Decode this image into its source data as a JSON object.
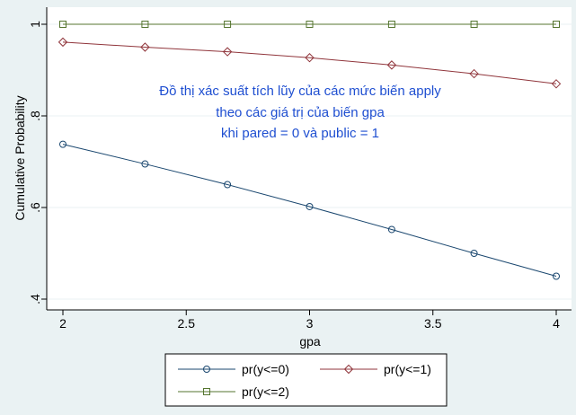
{
  "chart_data": {
    "type": "line",
    "title": "",
    "xlabel": "gpa",
    "ylabel": "Cumulative Probability",
    "xlim": [
      2,
      4
    ],
    "ylim": [
      0.4,
      1
    ],
    "x_ticks": [
      2,
      2.5,
      3,
      3.5,
      4
    ],
    "x_tick_labels": [
      "2",
      "2.5",
      "3",
      "3.5",
      "4"
    ],
    "y_ticks": [
      0.4,
      0.6,
      0.8,
      1
    ],
    "y_tick_labels": [
      ".4",
      ".6",
      ".8",
      "1"
    ],
    "grid": "horizontal",
    "legend_position": "bottom",
    "annotation": [
      "Đồ thị xác suất tích lũy của các mức biến apply",
      "theo các giá trị của biến gpa",
      "khi pared = 0 và public = 1"
    ],
    "x": [
      2,
      2.333,
      2.667,
      3,
      3.333,
      3.667,
      4
    ],
    "series": [
      {
        "name": "pr(y<=0)",
        "marker": "circle",
        "color": "#1a476f",
        "values": [
          0.738,
          0.695,
          0.65,
          0.602,
          0.552,
          0.5,
          0.45
        ]
      },
      {
        "name": "pr(y<=1)",
        "marker": "diamond",
        "color": "#90353b",
        "values": [
          0.961,
          0.95,
          0.94,
          0.927,
          0.911,
          0.892,
          0.87
        ]
      },
      {
        "name": "pr(y<=2)",
        "marker": "square",
        "color": "#55752f",
        "values": [
          1,
          1,
          1,
          1,
          1,
          1,
          1
        ]
      }
    ]
  }
}
